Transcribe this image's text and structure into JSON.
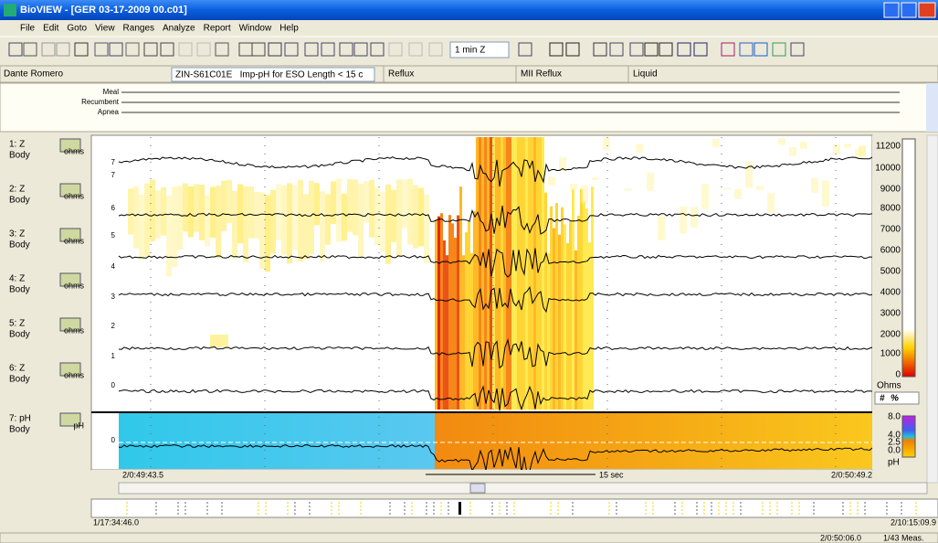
{
  "window": {
    "title": "BioVIEW - [GER 03-17-2009 00.c01]"
  },
  "menu": [
    "File",
    "Edit",
    "Goto",
    "View",
    "Ranges",
    "Analyze",
    "Report",
    "Window",
    "Help"
  ],
  "toolbar": {
    "zoom": "1 min Z"
  },
  "info_bar": {
    "patient": "Dante Romero",
    "protocol": "ZIN-S61C01E   Imp-pH for ESO Length < 15 c",
    "columns": [
      "Reflux",
      "MII Reflux",
      "Liquid"
    ]
  },
  "events": [
    "Meal",
    "Recumbent",
    "Apnea"
  ],
  "channels": [
    {
      "name": "1: Z",
      "site": "Body",
      "unit": "ohms"
    },
    {
      "name": "2: Z",
      "site": "Body",
      "unit": "ohms"
    },
    {
      "name": "3: Z",
      "site": "Body",
      "unit": "ohms"
    },
    {
      "name": "4: Z",
      "site": "Body",
      "unit": "ohms"
    },
    {
      "name": "5: Z",
      "site": "Body",
      "unit": "ohms"
    },
    {
      "name": "6: Z",
      "site": "Body",
      "unit": "ohms"
    },
    {
      "name": "7: pH",
      "site": "Body",
      "unit": "pH"
    }
  ],
  "left_axis": [
    "7",
    "7",
    "6",
    "5",
    "4",
    "3",
    "2",
    "1",
    "0",
    "0"
  ],
  "impedance_scale": {
    "ticks": [
      "11200",
      "10000",
      "9000",
      "8000",
      "7000",
      "6000",
      "5000",
      "4000",
      "3000",
      "2000",
      "1000",
      "0"
    ],
    "unit": "Ohms",
    "buttons": [
      "#",
      "%"
    ]
  },
  "ph_scale": {
    "ticks": [
      "8.0",
      "4.0",
      "2.5",
      "0.0"
    ],
    "unit": "pH"
  },
  "time_axis": {
    "start": "2/0:49:43.5",
    "span": "15 sec",
    "end": "2/0:50:49.2"
  },
  "overview": {
    "start": "1/17:34:46.0",
    "end": "2/10:15:09.9"
  },
  "status_bar": {
    "cursor_time": "2/0:50:06.0",
    "measurement": "1/43 Meas."
  }
}
